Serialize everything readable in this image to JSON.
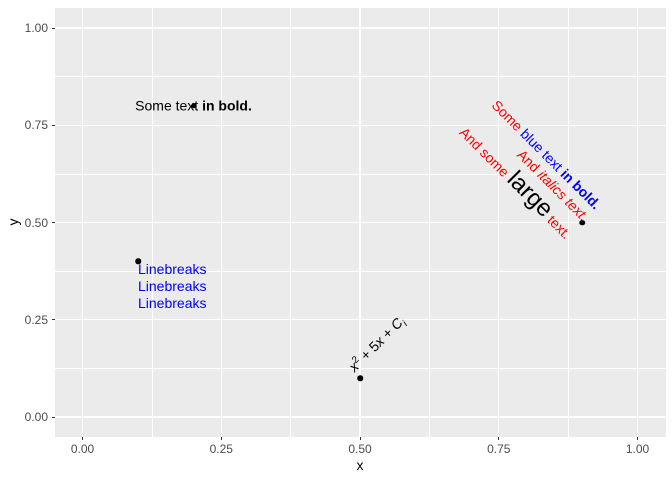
{
  "figure": {
    "background": "#FFFFFF",
    "panel_bg": "#EBEBEB",
    "grid_color": "#FFFFFF",
    "tick_color": "#333333",
    "tick_label_color": "#4D4D4D",
    "axis_title_color": "#000000",
    "point_color": "#000000"
  },
  "axes": {
    "x": {
      "title": "x",
      "tick_labels": [
        "0.00",
        "0.25",
        "0.50",
        "0.75",
        "1.00"
      ],
      "tick_values": [
        0,
        0.25,
        0.5,
        0.75,
        1
      ],
      "minor_values": [
        0.125,
        0.375,
        0.625,
        0.875
      ]
    },
    "y": {
      "title": "y",
      "tick_labels": [
        "0.00",
        "0.25",
        "0.50",
        "0.75",
        "1.00"
      ],
      "tick_values": [
        0,
        0.25,
        0.5,
        0.75,
        1
      ],
      "minor_values": [
        0.125,
        0.375,
        0.625,
        0.875
      ]
    }
  },
  "chart_data": {
    "type": "scatter",
    "title": "",
    "xlabel": "x",
    "ylabel": "y",
    "xlim": [
      0,
      1
    ],
    "ylim": [
      0,
      1
    ],
    "grid": "on",
    "legend": "none",
    "points": [
      {
        "x": 0.2,
        "y": 0.8
      },
      {
        "x": 0.1,
        "y": 0.4
      },
      {
        "x": 0.5,
        "y": 0.1
      },
      {
        "x": 0.9,
        "y": 0.5
      }
    ],
    "annotations": [
      {
        "x": 0.2,
        "y": 0.8,
        "hjust": 0.5,
        "vjust": 0.5,
        "angle": 0,
        "color": "#000000",
        "lines": [
          [
            {
              "t": "Some text "
            },
            {
              "t": "in bold.",
              "b": 1
            }
          ]
        ]
      },
      {
        "x": 0.1,
        "y": 0.4,
        "hjust": 0,
        "vjust": 1,
        "angle": 0,
        "color": "#0000FF",
        "lines": [
          [
            {
              "t": "Linebreaks"
            }
          ],
          [
            {
              "t": "Linebreaks"
            }
          ],
          [
            {
              "t": "Linebreaks"
            }
          ]
        ]
      },
      {
        "x": 0.5,
        "y": 0.1,
        "hjust": 0,
        "vjust": 0,
        "angle": 45,
        "color": "#000000",
        "lines": [
          [
            {
              "t": "x",
              "i": 1
            },
            {
              "t": "2",
              "sup": 1
            },
            {
              "t": " + 5"
            },
            {
              "t": "x",
              "i": 1
            },
            {
              "t": " + "
            },
            {
              "t": "C",
              "i": 1
            },
            {
              "t": "i",
              "sub": 1,
              "i": 1
            }
          ]
        ]
      },
      {
        "x": 0.9,
        "y": 0.5,
        "hjust": 1,
        "vjust": 0.5,
        "angle": -45,
        "color": "#FF0000",
        "lines": [
          [
            {
              "t": "Some "
            },
            {
              "t": "blue text ",
              "c": "#0000FF"
            },
            {
              "t": "in bold.",
              "c": "#0000FF",
              "b": 1
            }
          ],
          [
            {
              "t": "And "
            },
            {
              "t": "italics text.",
              "i": 1
            }
          ],
          [
            {
              "t": "And some "
            },
            {
              "t": "large",
              "c": "#000000",
              "px": 24
            },
            {
              "t": " text."
            }
          ]
        ]
      }
    ]
  }
}
